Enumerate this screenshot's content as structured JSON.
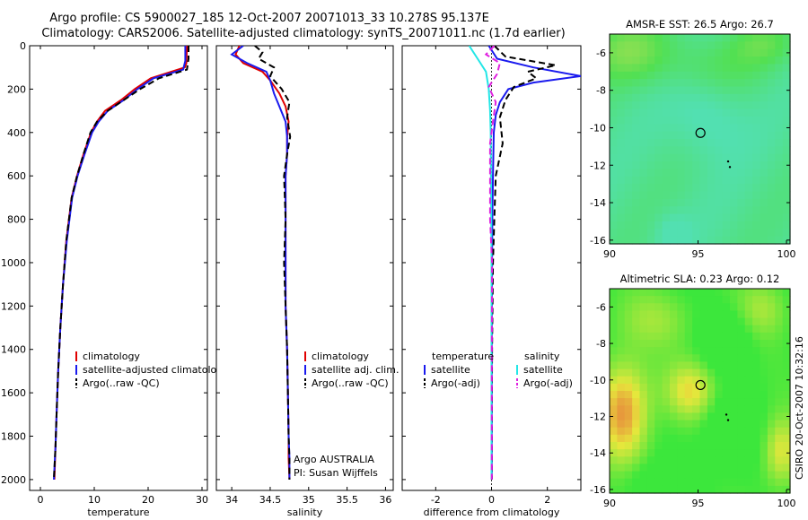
{
  "title_line1": "Argo profile: CS 5900027_185 12-Oct-2007 20071013_33 10.278S 95.137E",
  "title_line2": "Climatology: CARS2006. Satellite-adjusted climatology: synTS_20071011.nc (1.7d earlier)",
  "credit": "CSIRO 20-Oct-2007 10:32:16",
  "colors": {
    "red": "#e00000",
    "blue": "#1a1aee",
    "black": "#000000",
    "cyan": "#22e6e6",
    "magenta": "#e020e0"
  },
  "chart_data": [
    {
      "type": "line",
      "id": "temperature",
      "xlabel": "temperature",
      "xlim": [
        -2,
        31
      ],
      "ylim": [
        0,
        2050
      ],
      "xticks": [
        0,
        10,
        20,
        30
      ],
      "yticks": [
        0,
        200,
        400,
        600,
        800,
        1000,
        1200,
        1400,
        1600,
        1800,
        2000
      ],
      "legend": {
        "placement": "lower-right",
        "items": [
          "climatology",
          "satellite-adjusted climatology",
          "Argo(..raw -QC)"
        ]
      },
      "series": [
        {
          "name": "climatology",
          "color": "red",
          "style": "solid",
          "x": [
            27.2,
            27.1,
            26.8,
            20.5,
            17.5,
            15,
            12,
            10.5,
            9.4,
            8,
            6.8,
            5.8,
            4.8,
            4.2,
            3.7,
            3.3,
            3,
            2.8,
            2.6
          ],
          "y": [
            0,
            80,
            100,
            150,
            200,
            250,
            300,
            350,
            400,
            500,
            600,
            700,
            900,
            1100,
            1300,
            1500,
            1700,
            1850,
            2000
          ]
        },
        {
          "name": "satellite-adjusted climatology",
          "color": "blue",
          "style": "solid",
          "x": [
            26.9,
            26.9,
            26.5,
            21,
            18,
            15.5,
            12.5,
            10.8,
            9.6,
            8.2,
            6.9,
            5.9,
            4.9,
            4.2,
            3.7,
            3.3,
            3,
            2.8,
            2.5
          ],
          "y": [
            0,
            70,
            110,
            150,
            200,
            250,
            300,
            350,
            400,
            500,
            600,
            700,
            900,
            1100,
            1300,
            1500,
            1700,
            1850,
            2000
          ]
        },
        {
          "name": "Argo(..raw -QC)",
          "color": "black",
          "style": "dashed",
          "x": [
            27.5,
            27.5,
            27.2,
            22,
            18.5,
            15.5,
            12.5,
            10.5,
            9.3,
            8,
            6.8,
            5.8,
            4.8,
            4.2,
            3.7,
            3.3,
            3,
            2.8,
            2.5
          ],
          "y": [
            0,
            60,
            110,
            150,
            200,
            250,
            300,
            350,
            400,
            500,
            600,
            700,
            900,
            1100,
            1300,
            1500,
            1700,
            1850,
            2000
          ]
        }
      ]
    },
    {
      "type": "line",
      "id": "salinity",
      "xlabel": "salinity",
      "xlim": [
        33.8,
        36.1
      ],
      "ylim": [
        0,
        2050
      ],
      "xticks": [
        34,
        34.5,
        35,
        35.5,
        36
      ],
      "yticks": [
        0,
        200,
        400,
        600,
        800,
        1000,
        1200,
        1400,
        1600,
        1800,
        2000
      ],
      "annotation": [
        "Argo AUSTRALIA",
        "PI: Susan Wijffels"
      ],
      "legend": {
        "placement": "lower-right",
        "items": [
          "climatology",
          "satellite adj. clim.",
          "Argo(..raw -QC)"
        ]
      },
      "series": [
        {
          "name": "climatology",
          "color": "red",
          "style": "solid",
          "x": [
            34.1,
            34.05,
            34.15,
            34.4,
            34.5,
            34.62,
            34.7,
            34.74,
            34.72,
            34.72,
            34.7,
            34.7,
            34.7,
            34.7,
            34.72,
            34.73,
            34.74,
            34.74,
            34.75
          ],
          "y": [
            0,
            40,
            80,
            120,
            160,
            220,
            280,
            350,
            420,
            500,
            600,
            800,
            1000,
            1200,
            1400,
            1600,
            1800,
            1900,
            2000
          ]
        },
        {
          "name": "satellite adj. clim.",
          "color": "blue",
          "style": "solid",
          "x": [
            34.15,
            34.0,
            34.2,
            34.45,
            34.5,
            34.55,
            34.62,
            34.7,
            34.72,
            34.72,
            34.7,
            34.7,
            34.7,
            34.7,
            34.72,
            34.73,
            34.74,
            34.75,
            34.75
          ],
          "y": [
            0,
            40,
            80,
            120,
            160,
            220,
            280,
            350,
            420,
            500,
            600,
            800,
            1000,
            1200,
            1400,
            1600,
            1800,
            1900,
            2000
          ]
        },
        {
          "name": "Argo(..raw -QC)",
          "color": "black",
          "style": "dashed",
          "x": [
            34.3,
            34.4,
            34.35,
            34.55,
            34.5,
            34.65,
            34.75,
            34.72,
            34.76,
            34.72,
            34.68,
            34.7,
            34.68,
            34.7,
            34.72,
            34.73,
            34.74,
            34.75,
            34.75
          ],
          "y": [
            0,
            30,
            60,
            100,
            140,
            200,
            260,
            330,
            420,
            500,
            600,
            800,
            1000,
            1200,
            1400,
            1600,
            1800,
            1900,
            2000
          ]
        }
      ]
    },
    {
      "type": "line",
      "id": "difference",
      "xlabel": "difference from climatology",
      "xlim": [
        -3.2,
        3.2
      ],
      "ylim": [
        0,
        2050
      ],
      "xticks": [
        -2,
        0,
        2
      ],
      "yticks": [
        0,
        200,
        400,
        600,
        800,
        1000,
        1200,
        1400,
        1600,
        1800,
        2000
      ],
      "legend": {
        "placement": "lower-center",
        "headers": [
          "temperature",
          "salinity"
        ],
        "items": [
          "satellite",
          "Argo(-adj)",
          "satellite",
          "Argo(-adj)"
        ]
      },
      "series": [
        {
          "name": "temperature satellite",
          "color": "blue",
          "style": "solid",
          "x": [
            -0.1,
            0.2,
            1.5,
            3.2,
            1.5,
            0.6,
            0.3,
            0.15,
            0.08,
            0.05,
            0.03,
            0.02,
            0.01,
            0.01,
            0.01
          ],
          "y": [
            0,
            60,
            100,
            140,
            170,
            200,
            260,
            320,
            400,
            600,
            800,
            1000,
            1400,
            1800,
            2000
          ]
        },
        {
          "name": "temperature Argo(-adj)",
          "color": "black",
          "style": "dashed",
          "x": [
            0.1,
            0.5,
            2.3,
            1.3,
            1.6,
            0.8,
            0.5,
            0.3,
            0.4,
            0.15,
            0.1,
            0.05,
            0.02,
            0.01,
            0.01
          ],
          "y": [
            0,
            50,
            90,
            120,
            150,
            190,
            250,
            330,
            450,
            600,
            800,
            1000,
            1400,
            1800,
            2000
          ]
        },
        {
          "name": "salinity satellite",
          "color": "cyan",
          "style": "solid",
          "x": [
            -0.8,
            -0.5,
            -0.2,
            -0.1,
            -0.05,
            -0.03,
            -0.02,
            -0.01,
            0,
            0,
            0
          ],
          "y": [
            0,
            60,
            120,
            200,
            300,
            400,
            600,
            800,
            1000,
            1500,
            2000
          ]
        },
        {
          "name": "salinity Argo(-adj)",
          "color": "magenta",
          "style": "dashed",
          "x": [
            0.1,
            -0.2,
            0.3,
            0.2,
            -0.1,
            0.15,
            0.05,
            -0.05,
            -0.05,
            0.02,
            0.01,
            0.01
          ],
          "y": [
            0,
            40,
            80,
            130,
            190,
            260,
            350,
            450,
            800,
            1000,
            1500,
            2000
          ]
        }
      ]
    },
    {
      "type": "heatmap",
      "id": "sst_map",
      "title": "AMSR-E SST: 26.5 Argo: 26.7",
      "xlim": [
        90,
        100.2
      ],
      "ylim": [
        -16.2,
        -5
      ],
      "xticks": [
        90,
        95,
        100
      ],
      "yticks": [
        -6,
        -8,
        -10,
        -12,
        -14,
        -16
      ],
      "marker_lonlat": [
        95.137,
        -10.278
      ],
      "track_lonlat": [
        [
          96.7,
          -11.8
        ],
        [
          96.8,
          -12.1
        ]
      ]
    },
    {
      "type": "heatmap",
      "id": "sla_map",
      "title": "Altimetric SLA: 0.23 Argo: 0.12",
      "xlim": [
        90,
        100.2
      ],
      "ylim": [
        -16.2,
        -5
      ],
      "xticks": [
        90,
        95,
        100
      ],
      "yticks": [
        -6,
        -8,
        -10,
        -12,
        -14,
        -16
      ],
      "marker_lonlat": [
        95.137,
        -10.278
      ],
      "track_lonlat": [
        [
          96.6,
          -11.9
        ],
        [
          96.7,
          -12.2
        ]
      ]
    }
  ]
}
